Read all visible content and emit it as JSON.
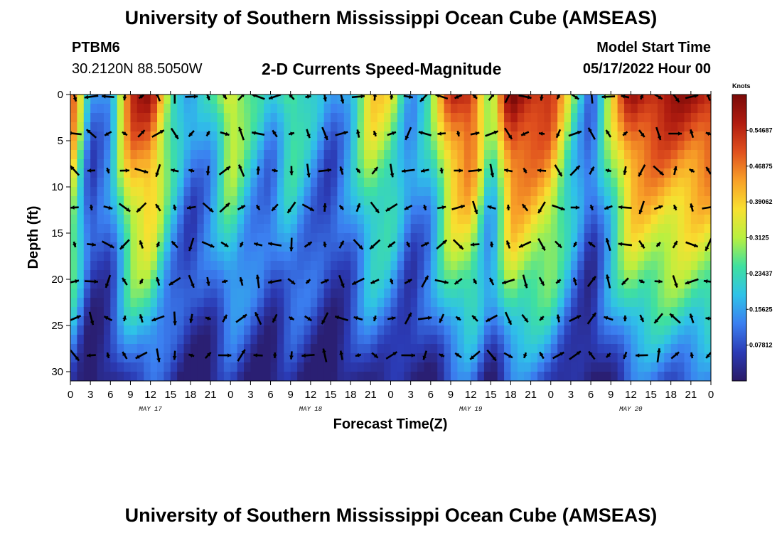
{
  "header": {
    "title": "University of Southern Mississippi Ocean Cube (AMSEAS)",
    "station": "PTBM6",
    "coords": "30.2120N  88.5050W",
    "subtitle": "2-D Currents Speed-Magnitude",
    "model_start_label": "Model Start Time",
    "model_start_value": "05/17/2022 Hour 00"
  },
  "footer": {
    "title": "University of Southern Mississippi Ocean Cube (AMSEAS)"
  },
  "chart_data": {
    "type": "heatmap",
    "title": "2-D Currents Speed-Magnitude",
    "xlabel": "Forecast Time(Z)",
    "ylabel": "Depth (ft)",
    "x_range_hours": [
      0,
      96
    ],
    "y_range_ft": [
      0,
      31
    ],
    "x_tick_labels": [
      "0",
      "3",
      "6",
      "9",
      "12",
      "15",
      "18",
      "21",
      "0",
      "3",
      "6",
      "9",
      "12",
      "15",
      "18",
      "21",
      "0",
      "3",
      "6",
      "9",
      "12",
      "15",
      "18",
      "21",
      "0",
      "3",
      "6",
      "9",
      "12",
      "15",
      "18",
      "21",
      "0"
    ],
    "y_ticks": [
      0,
      5,
      10,
      15,
      20,
      25,
      30
    ],
    "date_labels": [
      {
        "label": "MAY 17",
        "hour": 12
      },
      {
        "label": "MAY 18",
        "hour": 36
      },
      {
        "label": "MAY 19",
        "hour": 60
      },
      {
        "label": "MAY 20",
        "hour": 84
      }
    ],
    "colorbar": {
      "unit": "Knots",
      "range": [
        0,
        0.625
      ],
      "tick_labels": [
        "0.07812",
        "0.15625",
        "0.23437",
        "0.3125",
        "0.39062",
        "0.46875",
        "0.54687"
      ],
      "colors": [
        "#2a1a66",
        "#2b3bb5",
        "#3b7ff0",
        "#2fc2e8",
        "#3fe0a0",
        "#b8f040",
        "#f8e030",
        "#f8a028",
        "#e0501e",
        "#b01c10",
        "#7a0a08"
      ]
    },
    "speed_core_profile_knots": [
      0.5,
      0.05,
      0.12,
      0.5,
      0.55,
      0.25,
      0.08,
      0.15,
      0.35,
      0.2,
      0.1,
      0.25,
      0.15,
      0.05,
      0.15,
      0.35,
      0.3,
      0.1,
      0.2,
      0.5,
      0.55,
      0.2,
      0.6,
      0.55,
      0.5,
      0.25,
      0.05,
      0.3,
      0.55,
      0.55,
      0.55,
      0.55,
      0.55
    ]
  }
}
